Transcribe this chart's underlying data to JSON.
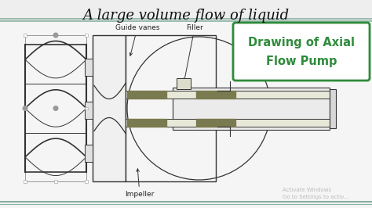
{
  "title": "A large volume flow of liquid",
  "title_fontsize": 13,
  "bg_color": "#eeeeee",
  "white_bg": "#ffffff",
  "label_guide_vanes": "Guide vanes",
  "label_filler": "Filler",
  "label_impeller": "Impeller",
  "box_text_line1": "Drawing of Axial",
  "box_text_line2": "Flow Pump",
  "box_color": "#2e8b3a",
  "shaft_color": "#7a7a50",
  "line_color": "#333333",
  "teal": "#88b0a0",
  "watermark1": "Activate Windows",
  "watermark2": "Go to Settings to activ..."
}
